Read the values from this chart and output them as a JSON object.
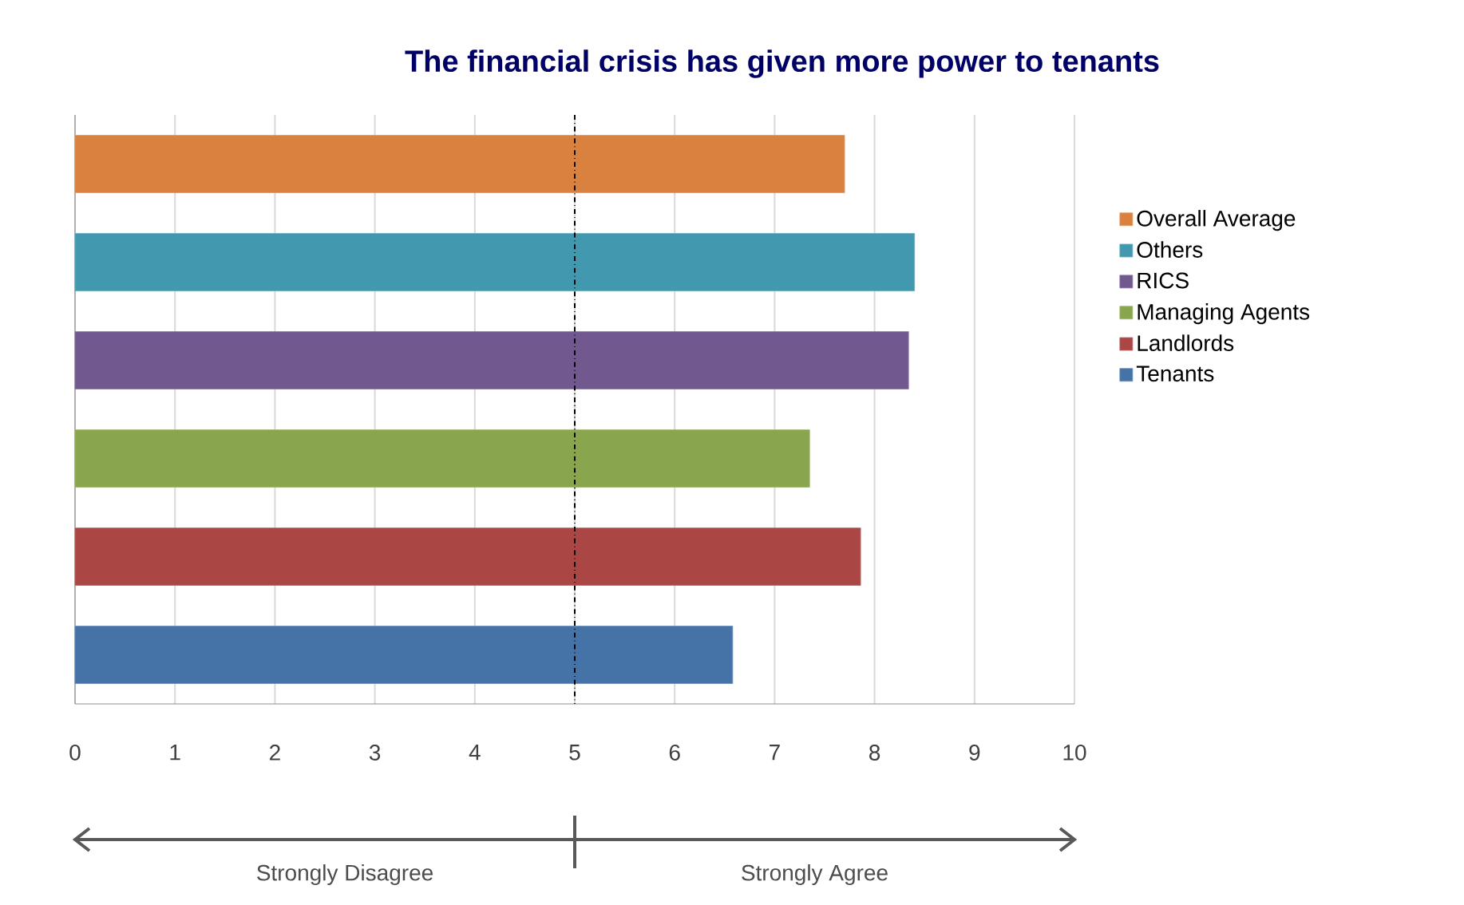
{
  "chart_data": {
    "type": "bar",
    "orientation": "horizontal",
    "title": "The financial crisis has given more power to tenants",
    "categories": [
      null,
      null,
      null,
      null,
      null,
      null
    ],
    "series": [
      {
        "name": "Overall Average",
        "color": "#d9823f",
        "values": [
          7.7,
          null,
          null,
          null,
          null,
          null
        ]
      },
      {
        "name": "Others",
        "color": "#4298af",
        "values": [
          null,
          8.4,
          null,
          null,
          null,
          null
        ]
      },
      {
        "name": "RICS",
        "color": "#71588f",
        "values": [
          null,
          null,
          8.34,
          null,
          null,
          null
        ]
      },
      {
        "name": "Managing Agents",
        "color": "#89a54e",
        "values": [
          null,
          null,
          null,
          7.35,
          null,
          null
        ]
      },
      {
        "name": "Landlords",
        "color": "#aa4643",
        "values": [
          null,
          null,
          null,
          null,
          7.86,
          null
        ]
      },
      {
        "name": "Tenants",
        "color": "#4572a7",
        "values": [
          null,
          null,
          null,
          null,
          null,
          6.58
        ]
      }
    ],
    "xlim": [
      0,
      10
    ],
    "xticks": [
      0,
      1,
      2,
      3,
      4,
      5,
      6,
      7,
      8,
      9,
      10
    ],
    "grid": "x",
    "legend": "right",
    "tick_labels": "x",
    "ref_lines": [
      {
        "axis": "x",
        "value": 5,
        "color": "#000000"
      }
    ],
    "annotations": [
      "Strongly Disagree",
      "Strongly Agree"
    ]
  }
}
